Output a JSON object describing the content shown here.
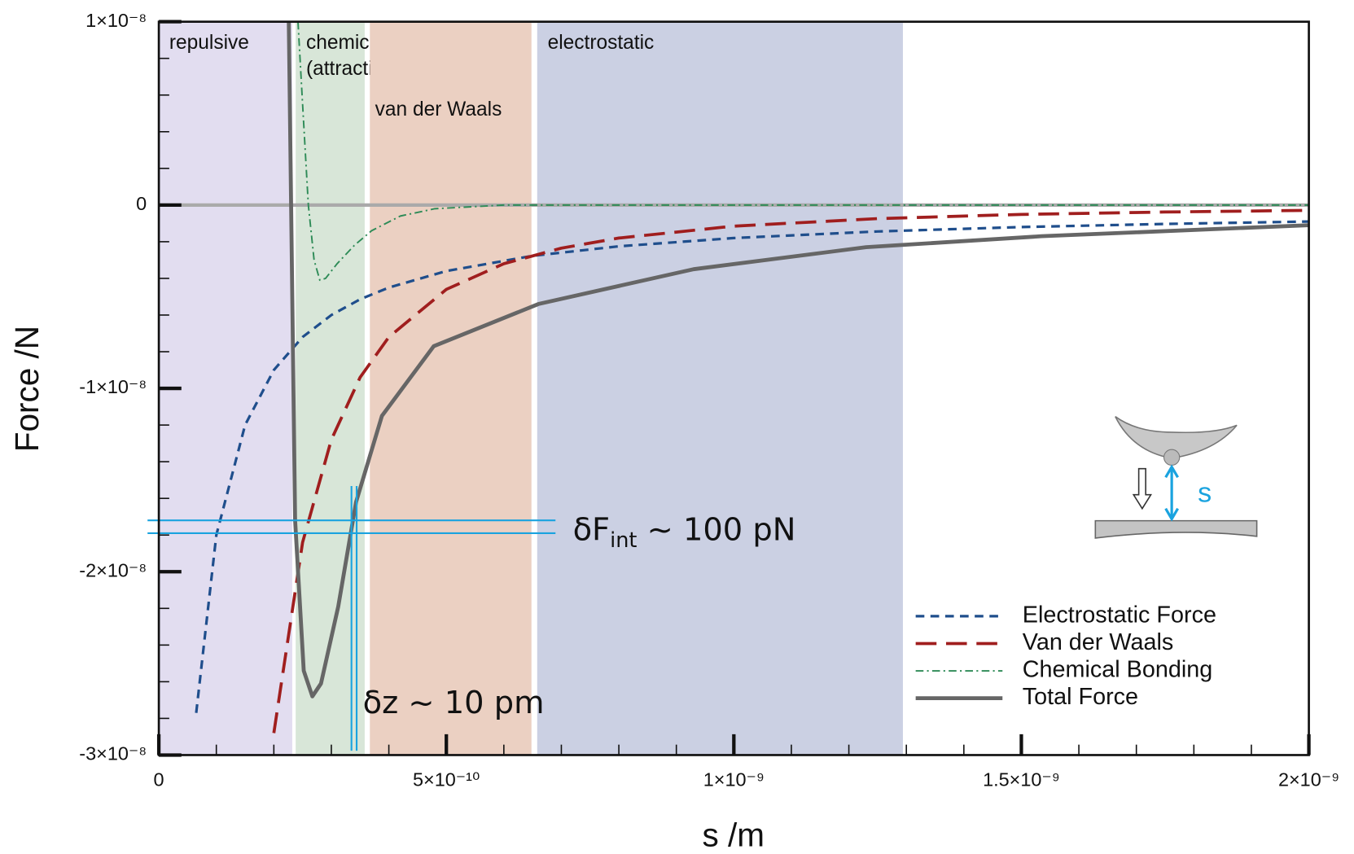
{
  "chart_data": {
    "type": "line",
    "x_label": "s /m",
    "y_label": "Force /N",
    "xlim": [
      0,
      2e-09
    ],
    "ylim": [
      -3e-08,
      1e-08
    ],
    "xticks": [
      0,
      {
        "value": 5e-10,
        "label": "5×10⁻¹⁰"
      },
      {
        "value": 1e-09,
        "label": "1×10⁻⁹"
      },
      {
        "value": 1.5e-09,
        "label": "1.5×10⁻⁹"
      },
      {
        "value": 2e-09,
        "label": "2×10⁻⁹"
      }
    ],
    "yticks": [
      {
        "value": 1e-08,
        "label": "1×10⁻⁸"
      },
      0,
      {
        "value": -1e-08,
        "label": "-1×10⁻⁸"
      },
      {
        "value": -2e-08,
        "label": "-2×10⁻⁸"
      },
      {
        "value": -3e-08,
        "label": "-3×10⁻⁸"
      }
    ],
    "zero_line": true,
    "legend": "lower right",
    "bands": [
      {
        "label": [
          "repulsive"
        ],
        "x0": 0,
        "x1": 2.32e-10,
        "color": "#e2ddf0"
      },
      {
        "label": [
          "chemical",
          "(attractive)"
        ],
        "x0": 2.38e-10,
        "x1": 3.58e-10,
        "color": "#d8e6d8"
      },
      {
        "label": [
          "van der Waals"
        ],
        "x0": 3.67e-10,
        "x1": 6.48e-10,
        "color": "#ebd0c2"
      },
      {
        "label": [
          "electrostatic"
        ],
        "x0": 6.58e-10,
        "x1": 1.294e-09,
        "color": "#cbd0e3"
      }
    ],
    "series": [
      {
        "name": "Electrostatic Force",
        "color": "#1f4e8c",
        "linestyle": "dashed",
        "x": [
          6.5e-11,
          1e-10,
          1.5e-10,
          2e-10,
          2.5e-10,
          3e-10,
          3.5e-10,
          4e-10,
          5e-10,
          6.5e-10,
          8e-10,
          1e-09,
          1.25e-09,
          1.5e-09,
          1.75e-09,
          2e-09
        ],
        "values": [
          -2.77e-08,
          -1.8e-08,
          -1.2e-08,
          -9e-09,
          -7.2e-09,
          -6e-09,
          -5.14e-09,
          -4.5e-09,
          -3.6e-09,
          -2.77e-09,
          -2.25e-09,
          -1.8e-09,
          -1.44e-09,
          -1.2e-09,
          -1.03e-09,
          -9e-10
        ]
      },
      {
        "name": "Van der Waals",
        "color": "#a01e1e",
        "linestyle": "longdash",
        "x": [
          2e-10,
          2.5e-10,
          3e-10,
          3.5e-10,
          4e-10,
          5e-10,
          6e-10,
          7e-10,
          8e-10,
          1e-09,
          1.25e-09,
          1.5e-09,
          1.75e-09,
          2e-09
        ],
        "values": [
          -2.88e-08,
          -1.84e-08,
          -1.28e-08,
          -9.4e-09,
          -7.2e-09,
          -4.6e-09,
          -3.2e-09,
          -2.35e-09,
          -1.8e-09,
          -1.15e-09,
          -7.4e-10,
          -5.1e-10,
          -3.8e-10,
          -2.9e-10
        ]
      },
      {
        "name": "Chemical Bonding",
        "color": "#2e8b57",
        "linestyle": "dashdot",
        "x": [
          2.42e-10,
          2.5e-10,
          2.6e-10,
          2.7e-10,
          2.8e-10,
          2.9e-10,
          3.1e-10,
          3.4e-10,
          3.7e-10,
          4.2e-10,
          4.8e-10,
          6e-10,
          1e-09,
          2e-09
        ],
        "values": [
          1e-08,
          5.5e-09,
          0,
          -3e-09,
          -4.1e-09,
          -4e-09,
          -3.2e-09,
          -2.2e-09,
          -1.4e-09,
          -6e-10,
          -2e-10,
          0,
          0,
          0
        ]
      },
      {
        "name": "Total Force",
        "color": "#666666",
        "linestyle": "solid",
        "x": [
          2.26e-10,
          2.37e-10,
          2.52e-10,
          2.67e-10,
          2.82e-10,
          3.12e-10,
          3.43e-10,
          3.88e-10,
          4.78e-10,
          6.6e-10,
          9.3e-10,
          1.23e-09,
          1.535e-09,
          2e-09
        ],
        "values": [
          1e-08,
          -1.72e-08,
          -2.54e-08,
          -2.68e-08,
          -2.61e-08,
          -2.19e-08,
          -1.62e-08,
          -1.15e-08,
          -7.7e-09,
          -5.4e-09,
          -3.5e-09,
          -2.3e-09,
          -1.7e-09,
          -1.1e-09
        ]
      }
    ],
    "delta_F": {
      "prefix": "δF",
      "subscript": "int",
      "suffix": " ~ 100 pN",
      "y": [
        -1.72e-08,
        -1.79e-08
      ]
    },
    "delta_z": {
      "text": "δz ~ 10 pm",
      "x": [
        3.35e-10,
        3.44e-10
      ]
    },
    "inset_label": "s"
  }
}
